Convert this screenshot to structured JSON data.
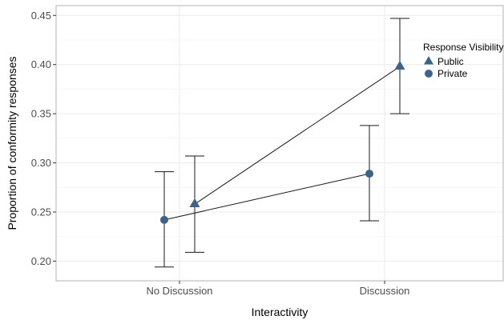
{
  "chart_data": {
    "type": "scatter",
    "title": "",
    "xlabel": "Interactivity",
    "ylabel": "Proportion of conformity responses",
    "categories": [
      "No Discussion",
      "Discussion"
    ],
    "ylim": [
      0.18,
      0.46
    ],
    "yticks": [
      "0.20",
      "0.25",
      "0.30",
      "0.35",
      "0.40",
      "0.45"
    ],
    "grid": true,
    "legend": {
      "title": "Response Visibility",
      "position": "right"
    },
    "marker_color": "#3e6389",
    "series": [
      {
        "name": "Public",
        "marker": "triangle",
        "values": [
          0.258,
          0.398
        ],
        "ci_low": [
          0.209,
          0.35
        ],
        "ci_high": [
          0.307,
          0.447
        ]
      },
      {
        "name": "Private",
        "marker": "circle",
        "values": [
          0.242,
          0.289
        ],
        "ci_low": [
          0.194,
          0.241
        ],
        "ci_high": [
          0.291,
          0.338
        ]
      }
    ]
  }
}
